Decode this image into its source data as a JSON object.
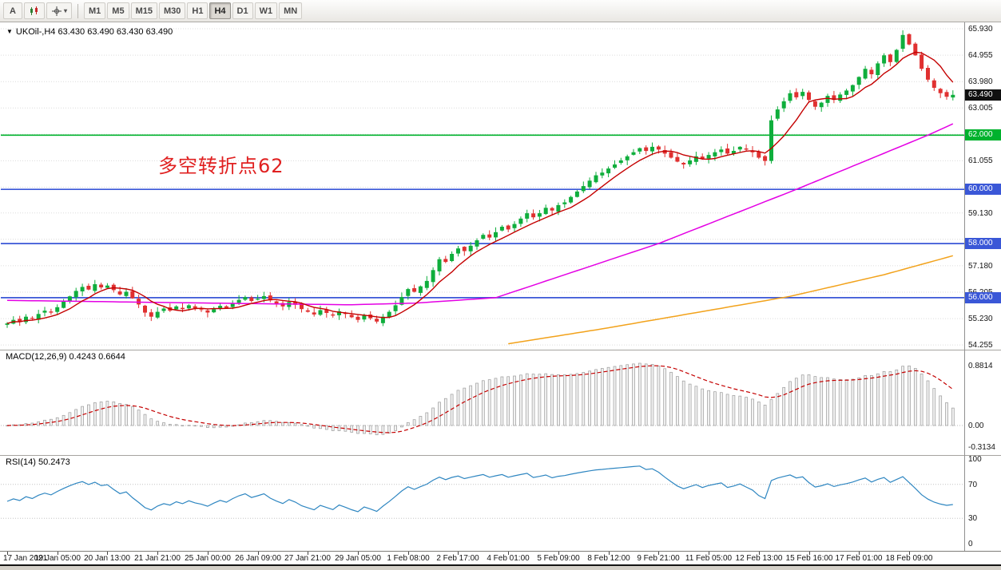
{
  "toolbar": {
    "cursor_label": "A",
    "dropdown_arrow": "▾",
    "timeframes": [
      "M1",
      "M5",
      "M15",
      "M30",
      "H1",
      "H4",
      "D1",
      "W1",
      "MN"
    ],
    "active_timeframe": "H4"
  },
  "header": {
    "dropdown_glyph": "▼",
    "symbol_label": "UKOil-,H4",
    "quote_label": "63.430 63.490 63.430 63.490"
  },
  "annotation": {
    "text": "多空转折点62",
    "color": "#E02020"
  },
  "price_axis": {
    "labels": [
      {
        "text": "65.930",
        "value": 65.93
      },
      {
        "text": "64.955",
        "value": 64.955
      },
      {
        "text": "63.980",
        "value": 63.98
      },
      {
        "text": "63.005",
        "value": 63.005
      },
      {
        "text": "61.055",
        "value": 61.055
      },
      {
        "text": "59.130",
        "value": 59.13
      },
      {
        "text": "57.180",
        "value": 57.18
      },
      {
        "text": "56.205",
        "value": 56.205
      },
      {
        "text": "55.230",
        "value": 55.23
      },
      {
        "text": "54.255",
        "value": 54.255
      }
    ],
    "badges": [
      {
        "text": "63.490",
        "value": 63.49,
        "bg": "#101010"
      },
      {
        "text": "62.000",
        "value": 62.0,
        "bg": "#00B22D"
      },
      {
        "text": "60.000",
        "value": 60.0,
        "bg": "#3A57D7"
      },
      {
        "text": "58.000",
        "value": 58.0,
        "bg": "#3A57D7"
      },
      {
        "text": "56.000",
        "value": 56.0,
        "bg": "#3A57D7"
      }
    ]
  },
  "time_axis": [
    "17 Jan 2021",
    "19 Jan 05:00",
    "20 Jan 13:00",
    "21 Jan 21:00",
    "25 Jan 00:00",
    "26 Jan 09:00",
    "27 Jan 21:00",
    "29 Jan 05:00",
    "1 Feb 08:00",
    "2 Feb 17:00",
    "4 Feb 01:00",
    "5 Feb 09:00",
    "8 Feb 12:00",
    "9 Feb 21:00",
    "11 Feb 05:00",
    "12 Feb 13:00",
    "15 Feb 16:00",
    "17 Feb 01:00",
    "18 Feb 09:00"
  ],
  "macd_panel": {
    "label": "MACD(12,26,9) 0.4243 0.6644",
    "scale_top": "0.8814",
    "scale_zero": "0.00",
    "scale_bottom": "-0.3134"
  },
  "rsi_panel": {
    "label": "RSI(14) 50.2473",
    "scale": [
      {
        "text": "100",
        "value": 100
      },
      {
        "text": "70",
        "value": 70
      },
      {
        "text": "30",
        "value": 30
      },
      {
        "text": "0",
        "value": 0
      }
    ],
    "levels": [
      70,
      30
    ]
  },
  "chart_data": {
    "type": "candlestick",
    "symbol": "UKOil",
    "timeframe": "H4",
    "current_ohlc": [
      63.43,
      63.49,
      63.43,
      63.49
    ],
    "current_price": 63.49,
    "macd_values": [
      0.4243,
      0.6644
    ],
    "rsi_value": 50.2473,
    "price_lines": [
      {
        "value": 62.0,
        "color": "#00B22D"
      },
      {
        "value": 60.0,
        "color": "#3A57D7"
      },
      {
        "value": 58.0,
        "color": "#3A57D7"
      },
      {
        "value": 56.0,
        "color": "#3A57D7"
      }
    ],
    "grid_prices": [
      65.93,
      64.955,
      63.98,
      63.005,
      62.03,
      61.055,
      60.08,
      59.13,
      58.155,
      57.18,
      56.205,
      55.23,
      54.255
    ],
    "closes": [
      55.05,
      55.18,
      55.1,
      55.3,
      55.22,
      55.4,
      55.52,
      55.45,
      55.65,
      55.85,
      56.05,
      56.25,
      56.4,
      56.3,
      56.5,
      56.38,
      56.45,
      56.28,
      56.12,
      56.22,
      55.98,
      55.75,
      55.45,
      55.3,
      55.48,
      55.6,
      55.52,
      55.68,
      55.58,
      55.72,
      55.62,
      55.55,
      55.45,
      55.58,
      55.7,
      55.62,
      55.78,
      55.92,
      56.02,
      55.88,
      55.96,
      56.06,
      55.9,
      55.78,
      55.68,
      55.84,
      55.74,
      55.58,
      55.48,
      55.38,
      55.54,
      55.44,
      55.34,
      55.5,
      55.4,
      55.28,
      55.18,
      55.34,
      55.24,
      55.12,
      55.3,
      55.48,
      55.72,
      56.02,
      56.32,
      56.22,
      56.42,
      56.62,
      57.02,
      57.42,
      57.32,
      57.62,
      57.82,
      57.72,
      57.92,
      58.12,
      58.32,
      58.22,
      58.42,
      58.62,
      58.52,
      58.72,
      58.92,
      59.12,
      58.97,
      59.12,
      59.32,
      59.22,
      59.42,
      59.52,
      59.72,
      59.92,
      60.12,
      60.32,
      60.52,
      60.62,
      60.77,
      60.92,
      61.07,
      61.22,
      61.37,
      61.52,
      61.42,
      61.57,
      61.47,
      61.32,
      61.17,
      61.02,
      60.92,
      61.07,
      61.22,
      61.12,
      61.27,
      61.37,
      61.47,
      61.32,
      61.42,
      61.57,
      61.47,
      61.37,
      61.17,
      61.05,
      62.55,
      62.95,
      63.25,
      63.55,
      63.4,
      63.6,
      63.3,
      63.05,
      63.2,
      63.45,
      63.3,
      63.5,
      63.65,
      63.85,
      64.15,
      64.45,
      64.25,
      64.65,
      64.95,
      64.7,
      65.15,
      65.7,
      65.35,
      64.95,
      64.45,
      64.05,
      63.75,
      63.55,
      63.42,
      63.49
    ],
    "ma_mid_waypoints": [
      [
        0,
        55.9
      ],
      [
        20,
        55.84
      ],
      [
        40,
        55.78
      ],
      [
        55,
        55.74
      ],
      [
        65,
        55.8
      ],
      [
        78,
        56.0
      ],
      [
        104,
        58.0
      ],
      [
        126,
        60.0
      ],
      [
        147,
        62.0
      ],
      [
        151,
        62.42
      ]
    ],
    "ma_slow_waypoints": [
      [
        80,
        54.3
      ],
      [
        95,
        54.85
      ],
      [
        110,
        55.45
      ],
      [
        125,
        56.05
      ],
      [
        140,
        56.85
      ],
      [
        151,
        57.55
      ]
    ],
    "colors": {
      "bull": "#0FAE3C",
      "bear": "#E03030",
      "ma_fast": "#C40000",
      "ma_mid": "#E400E4",
      "ma_slow": "#F2A21B",
      "macd_hist_stroke": "#9A9A9A",
      "macd_hist_fill": "#F1F1F1",
      "macd_signal": "#C40000",
      "rsi": "#2E86C1",
      "grid": "#DCDCDC",
      "level": "#C4C4C4"
    }
  }
}
